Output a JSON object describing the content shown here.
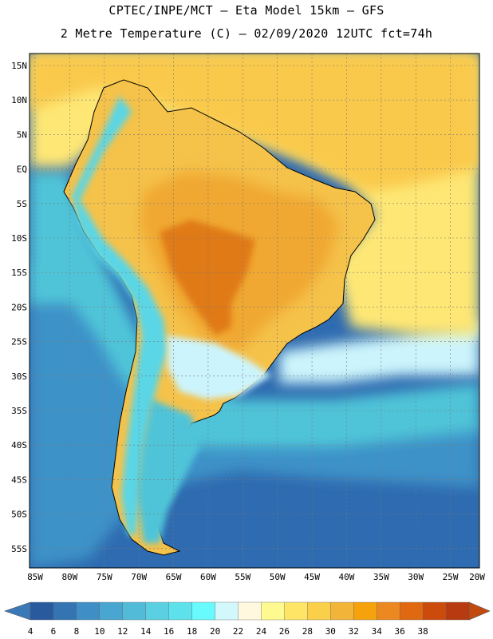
{
  "header": {
    "line1": "CPTEC/INPE/MCT –  Eta Model 15km – GFS",
    "line2": "2 Metre Temperature (C) – 02/09/2020 12UTC fct=74h"
  },
  "map": {
    "lat_labels": [
      "15N",
      "10N",
      "5N",
      "EQ",
      "5S",
      "10S",
      "15S",
      "20S",
      "25S",
      "30S",
      "35S",
      "40S",
      "45S",
      "50S",
      "55S"
    ],
    "lon_labels": [
      "85W",
      "80W",
      "75W",
      "70W",
      "65W",
      "60W",
      "55W",
      "50W",
      "45W",
      "40W",
      "35W",
      "30W",
      "25W",
      "20W"
    ],
    "ocean_colors": {
      "deep": "#2e6bb0",
      "mid": "#3c92c8",
      "light": "#4fc4d8",
      "pale": "#ccf4fc",
      "warm_sea": "#fee774",
      "tropic": "#f9c94b"
    },
    "land_colors": {
      "hot": "#e07a18",
      "warm": "#f0a830",
      "mild": "#f5c24a",
      "cool": "#5ad6e6"
    }
  },
  "colorbar": {
    "labels": [
      "4",
      "6",
      "8",
      "10",
      "12",
      "14",
      "16",
      "18",
      "20",
      "22",
      "24",
      "26",
      "28",
      "30",
      "32",
      "34",
      "36",
      "38"
    ],
    "colors": [
      "#2a5a9e",
      "#3474b3",
      "#3f8fc6",
      "#48a6d1",
      "#52bbd8",
      "#5ad0e2",
      "#5de2ec",
      "#68fafc",
      "#d2f8fc",
      "#fff8de",
      "#fffa90",
      "#fee566",
      "#fad04a",
      "#f3b43a",
      "#f5a20c",
      "#eb8820",
      "#e06810",
      "#cc4a0c",
      "#b83a10"
    ],
    "min_color": "#3a78b8",
    "max_color": "#c24a10"
  }
}
